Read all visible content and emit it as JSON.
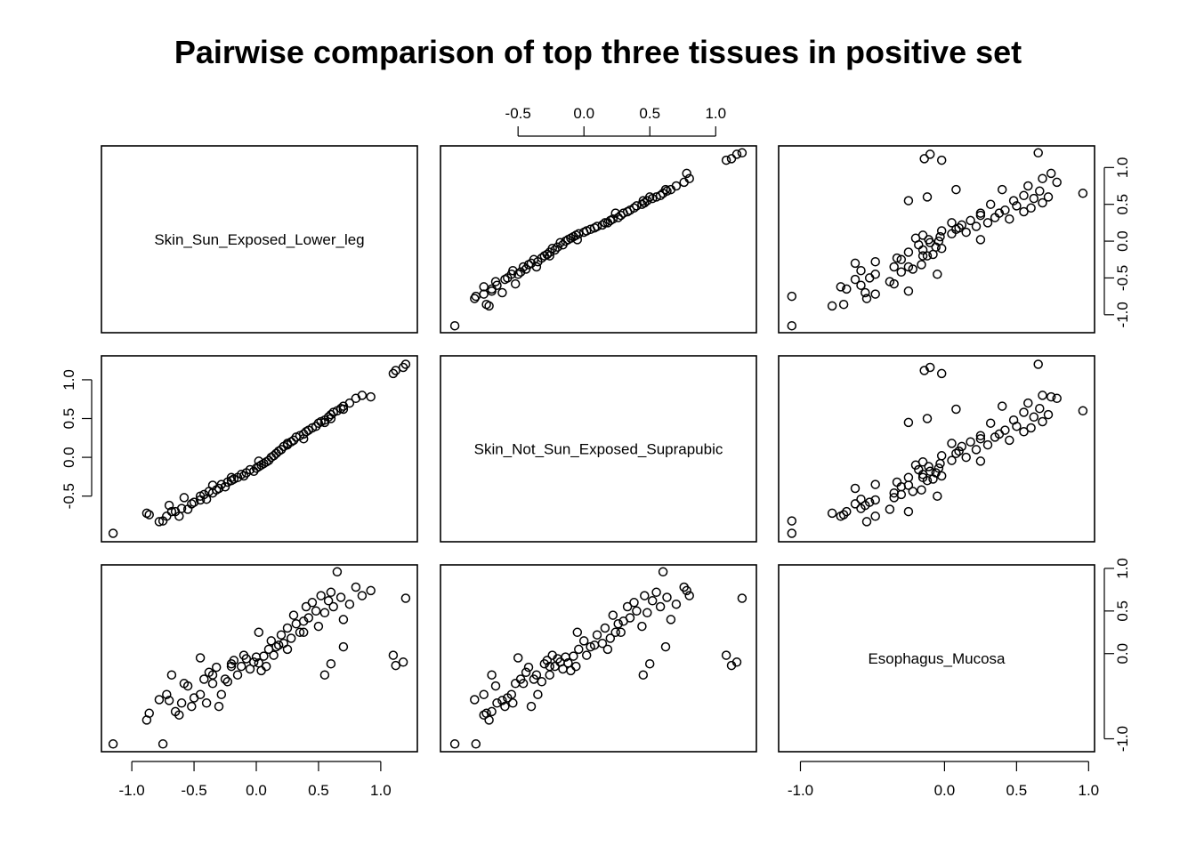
{
  "chart_data": {
    "type": "scatter",
    "title": "Pairwise comparison of top three tissues in positive set",
    "variables": [
      "Skin_Sun_Exposed_Lower_leg",
      "Skin_Not_Sun_Exposed_Suprapubic",
      "Esophagus_Mucosa"
    ],
    "axis_ticks": {
      "Skin_Sun_Exposed_Lower_leg": [
        "-1.0",
        "-0.5",
        "0.0",
        "0.5",
        "1.0"
      ],
      "Skin_Not_Sun_Exposed_Suprapubic": [
        "-0.5",
        "0.0",
        "0.5",
        "1.0"
      ],
      "Esophagus_Mucosa": [
        "-1.0",
        "0.0",
        "0.5",
        "1.0"
      ]
    },
    "ranges": {
      "Skin_Sun_Exposed_Lower_leg": [
        -1.15,
        1.2
      ],
      "Skin_Not_Sun_Exposed_Suprapubic": [
        -1.0,
        1.22
      ],
      "Esophagus_Mucosa": [
        -1.07,
        0.96
      ]
    },
    "points": [
      [
        -1.15,
        -0.98,
        -1.06
      ],
      [
        -0.88,
        -0.72,
        -0.78
      ],
      [
        -0.86,
        -0.74,
        -0.7
      ],
      [
        -0.78,
        -0.83,
        -0.54
      ],
      [
        -0.75,
        -0.82,
        -1.06
      ],
      [
        -0.72,
        -0.76,
        -0.48
      ],
      [
        -0.7,
        -0.62,
        -0.55
      ],
      [
        -0.68,
        -0.7,
        -0.25
      ],
      [
        -0.62,
        -0.76,
        -0.72
      ],
      [
        -0.6,
        -0.66,
        -0.58
      ],
      [
        -0.58,
        -0.52,
        -0.35
      ],
      [
        -0.55,
        -0.67,
        -0.38
      ],
      [
        -0.52,
        -0.6,
        -0.62
      ],
      [
        -0.5,
        -0.58,
        -0.52
      ],
      [
        -0.45,
        -0.55,
        -0.48
      ],
      [
        -0.42,
        -0.48,
        -0.3
      ],
      [
        -0.4,
        -0.54,
        -0.58
      ],
      [
        -0.38,
        -0.44,
        -0.22
      ],
      [
        -0.35,
        -0.46,
        -0.35
      ],
      [
        -0.32,
        -0.42,
        -0.16
      ],
      [
        -0.3,
        -0.4,
        -0.62
      ],
      [
        -0.28,
        -0.35,
        -0.48
      ],
      [
        -0.25,
        -0.38,
        -0.3
      ],
      [
        -0.23,
        -0.32,
        -0.33
      ],
      [
        -0.2,
        -0.3,
        -0.12
      ],
      [
        -0.18,
        -0.28,
        -0.08
      ],
      [
        -0.15,
        -0.26,
        -0.25
      ],
      [
        -0.12,
        -0.22,
        -0.15
      ],
      [
        -0.1,
        -0.24,
        -0.02
      ],
      [
        -0.08,
        -0.2,
        -0.06
      ],
      [
        -0.05,
        -0.16,
        -0.18
      ],
      [
        -0.02,
        -0.18,
        -0.1
      ],
      [
        0.0,
        -0.14,
        -0.04
      ],
      [
        0.02,
        -0.12,
        -0.11
      ],
      [
        0.04,
        -0.1,
        -0.2
      ],
      [
        0.06,
        -0.08,
        -0.03
      ],
      [
        0.08,
        -0.06,
        -0.15
      ],
      [
        0.1,
        -0.04,
        0.05
      ],
      [
        0.12,
        0.0,
        0.15
      ],
      [
        0.14,
        0.02,
        -0.02
      ],
      [
        0.16,
        0.05,
        0.08
      ],
      [
        0.18,
        0.08,
        0.1
      ],
      [
        0.2,
        0.1,
        0.22
      ],
      [
        0.22,
        0.14,
        0.12
      ],
      [
        0.25,
        0.16,
        0.3
      ],
      [
        0.28,
        0.2,
        0.18
      ],
      [
        0.3,
        0.22,
        0.45
      ],
      [
        0.32,
        0.26,
        0.35
      ],
      [
        0.35,
        0.28,
        0.25
      ],
      [
        0.38,
        0.3,
        0.38
      ],
      [
        0.4,
        0.33,
        0.55
      ],
      [
        0.42,
        0.35,
        0.42
      ],
      [
        0.45,
        0.38,
        0.6
      ],
      [
        0.48,
        0.4,
        0.5
      ],
      [
        0.5,
        0.44,
        0.32
      ],
      [
        0.52,
        0.46,
        0.68
      ],
      [
        0.55,
        0.48,
        0.48
      ],
      [
        0.58,
        0.52,
        0.62
      ],
      [
        0.6,
        0.55,
        0.72
      ],
      [
        0.62,
        0.58,
        0.55
      ],
      [
        0.65,
        0.6,
        0.96
      ],
      [
        0.68,
        0.63,
        0.66
      ],
      [
        0.7,
        0.66,
        0.4
      ],
      [
        0.75,
        0.7,
        0.58
      ],
      [
        0.8,
        0.76,
        0.78
      ],
      [
        0.85,
        0.8,
        0.68
      ],
      [
        0.92,
        0.78,
        0.74
      ],
      [
        1.1,
        1.08,
        -0.02
      ],
      [
        1.12,
        1.12,
        -0.14
      ],
      [
        1.18,
        1.16,
        -0.1
      ],
      [
        1.2,
        1.2,
        0.65
      ],
      [
        0.38,
        0.24,
        0.25
      ],
      [
        0.02,
        -0.05,
        0.25
      ],
      [
        -0.45,
        -0.5,
        -0.05
      ],
      [
        -0.65,
        -0.7,
        -0.68
      ],
      [
        0.55,
        0.45,
        -0.25
      ],
      [
        0.7,
        0.62,
        0.08
      ],
      [
        0.25,
        0.18,
        0.05
      ],
      [
        -0.2,
        -0.26,
        -0.15
      ],
      [
        0.6,
        0.5,
        -0.12
      ],
      [
        -0.35,
        -0.36,
        -0.25
      ]
    ]
  }
}
